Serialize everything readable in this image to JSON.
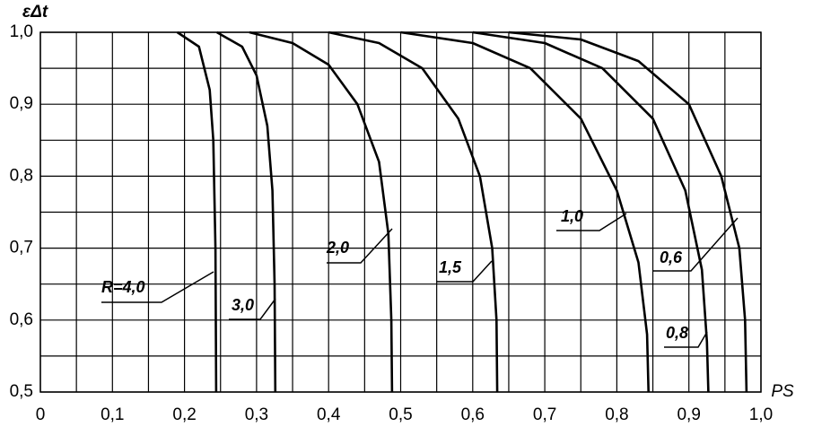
{
  "chart_data": {
    "type": "line",
    "xlabel": "PS",
    "ylabel": "εΔt",
    "xlim": [
      0,
      1.0
    ],
    "ylim": [
      0.5,
      1.0
    ],
    "xticks": [
      0,
      {
        "value": 0.1,
        "label": "0,1"
      },
      {
        "value": 0.2,
        "label": "0,2"
      },
      {
        "value": 0.3,
        "label": "0,3"
      },
      {
        "value": 0.4,
        "label": "0,4"
      },
      {
        "value": 0.5,
        "label": "0,5"
      },
      {
        "value": 0.6,
        "label": "0,6"
      },
      {
        "value": 0.7,
        "label": "0,7"
      },
      {
        "value": 0.8,
        "label": "0,8"
      },
      {
        "value": 0.9,
        "label": "0,9"
      },
      {
        "value": 1.0,
        "label": "1,0"
      }
    ],
    "yticks": [
      {
        "value": 0.5,
        "label": "0,5"
      },
      {
        "value": 0.6,
        "label": "0,6"
      },
      {
        "value": 0.7,
        "label": "0,7"
      },
      {
        "value": 0.8,
        "label": "0,8"
      },
      {
        "value": 0.9,
        "label": "0,9"
      },
      {
        "value": 1.0,
        "label": "1,0"
      }
    ],
    "x_minor_ticks": [
      0.05,
      0.15,
      0.25,
      0.35,
      0.45,
      0.55,
      0.65,
      0.75,
      0.85,
      0.95
    ],
    "y_minor_ticks": [
      0.55,
      0.65,
      0.75,
      0.85,
      0.95
    ],
    "grid": true,
    "color": "#000000",
    "series": [
      {
        "name": "R=4,0",
        "x": [
          0.19,
          0.22,
          0.235,
          0.24,
          0.243,
          0.244
        ],
        "values": [
          1.0,
          0.98,
          0.92,
          0.85,
          0.7,
          0.5
        ]
      },
      {
        "name": "3,0",
        "x": [
          0.245,
          0.28,
          0.3,
          0.315,
          0.322,
          0.325,
          0.326
        ],
        "values": [
          1.0,
          0.98,
          0.94,
          0.87,
          0.78,
          0.65,
          0.5
        ]
      },
      {
        "name": "2,0",
        "x": [
          0.29,
          0.35,
          0.4,
          0.44,
          0.47,
          0.483,
          0.487,
          0.488
        ],
        "values": [
          1.0,
          0.985,
          0.955,
          0.9,
          0.82,
          0.72,
          0.6,
          0.5
        ]
      },
      {
        "name": "1,5",
        "x": [
          0.4,
          0.47,
          0.53,
          0.58,
          0.61,
          0.627,
          0.633,
          0.634
        ],
        "values": [
          1.0,
          0.985,
          0.95,
          0.88,
          0.8,
          0.7,
          0.6,
          0.5
        ]
      },
      {
        "name": "1,0",
        "x": [
          0.5,
          0.6,
          0.68,
          0.75,
          0.8,
          0.83,
          0.842,
          0.844
        ],
        "values": [
          1.0,
          0.985,
          0.95,
          0.88,
          0.78,
          0.68,
          0.58,
          0.5
        ]
      },
      {
        "name": "0,8",
        "x": [
          0.6,
          0.7,
          0.78,
          0.85,
          0.895,
          0.918,
          0.925,
          0.927
        ],
        "values": [
          1.0,
          0.985,
          0.95,
          0.88,
          0.78,
          0.67,
          0.57,
          0.5
        ]
      },
      {
        "name": "0,6",
        "x": [
          0.65,
          0.75,
          0.83,
          0.9,
          0.945,
          0.97,
          0.978,
          0.98
        ],
        "values": [
          1.0,
          0.99,
          0.96,
          0.9,
          0.8,
          0.7,
          0.6,
          0.5
        ]
      }
    ]
  }
}
